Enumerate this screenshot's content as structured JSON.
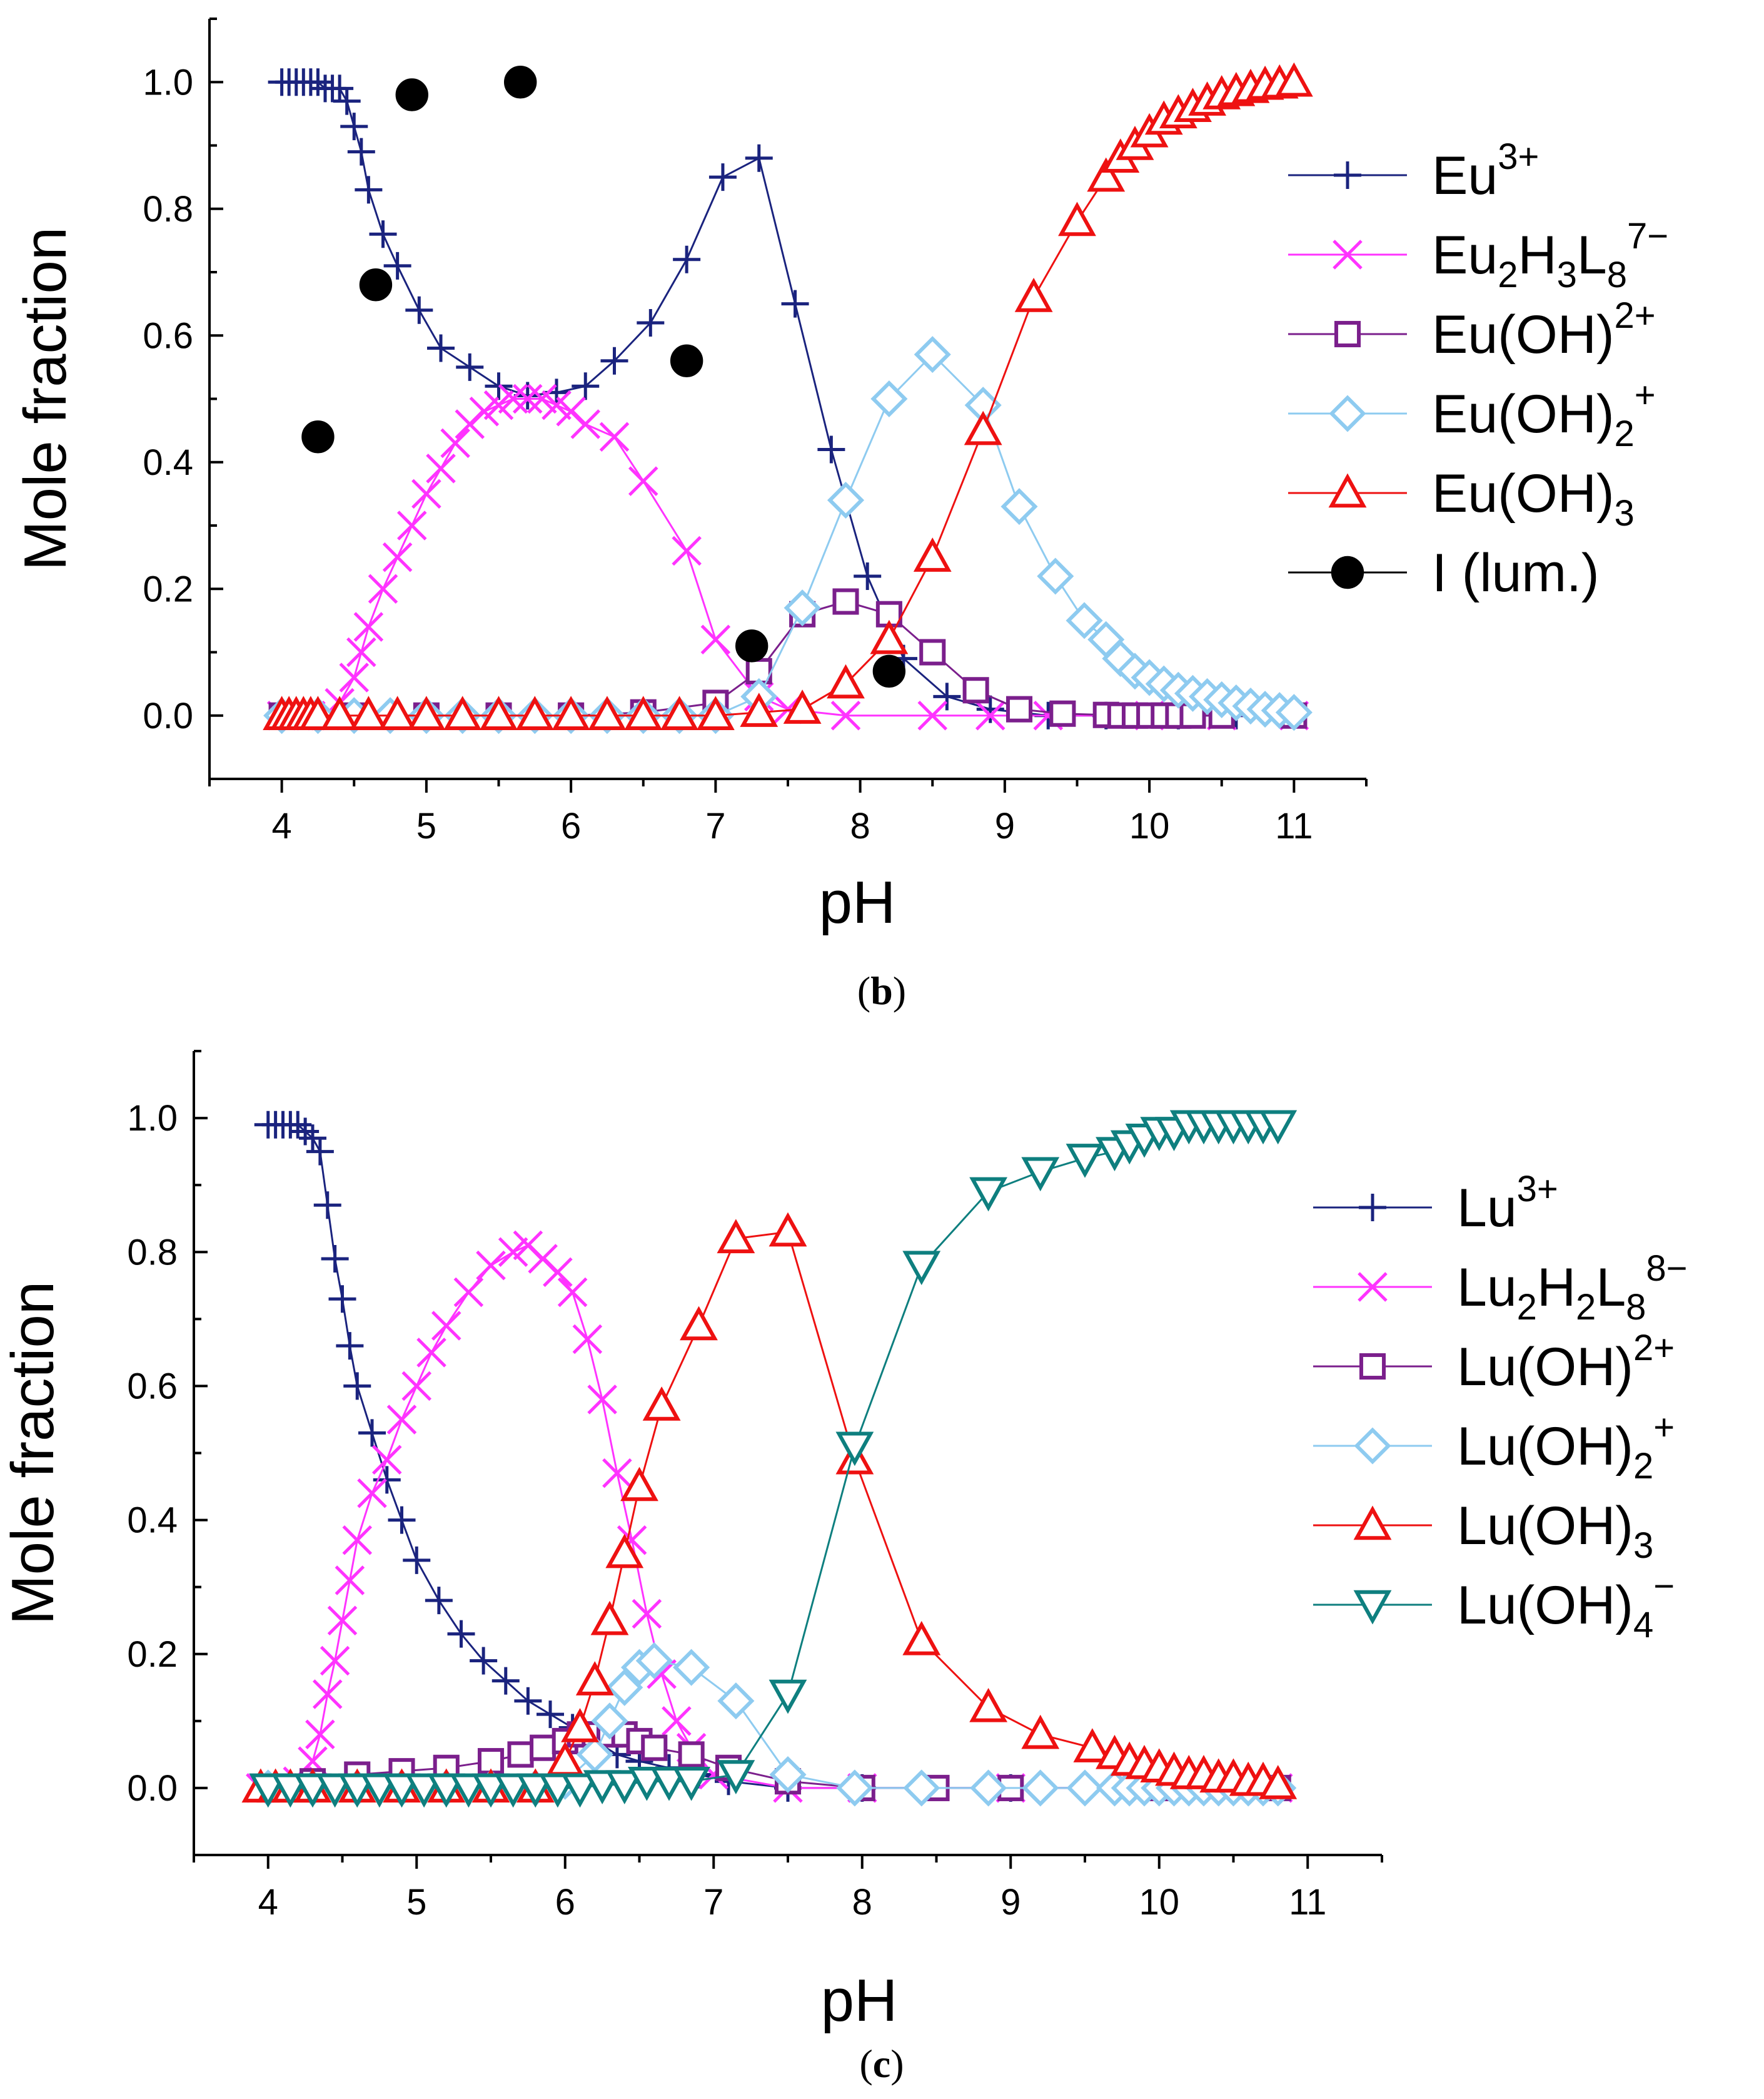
{
  "chart_data": [
    {
      "type": "scatter",
      "caption_open": "(",
      "caption_letter": "b",
      "caption_close": ")",
      "xlabel": "pH",
      "ylabel": "Mole fraction",
      "xlim": [
        3.5,
        11.5
      ],
      "ylim": [
        -0.1,
        1.1
      ],
      "xticks": [
        "4",
        "5",
        "6",
        "7",
        "8",
        "9",
        "10",
        "11"
      ],
      "yticks": [
        "0.0",
        "0.2",
        "0.4",
        "0.6",
        "0.8",
        "1.0"
      ],
      "legend_position": "right",
      "series": [
        {
          "key": "eu3",
          "name": "Eu",
          "sup": "3+",
          "marker": "plus",
          "color": "#1a237e",
          "x": [
            4.0,
            4.05,
            4.1,
            4.15,
            4.2,
            4.25,
            4.3,
            4.35,
            4.4,
            4.45,
            4.5,
            4.55,
            4.6,
            4.7,
            4.8,
            4.95,
            5.1,
            5.3,
            5.5,
            5.7,
            5.9,
            6.1,
            6.3,
            6.55,
            6.8,
            7.05,
            7.3,
            7.55,
            7.8,
            8.05,
            8.3,
            8.6,
            8.9,
            9.3,
            9.7,
            10.2,
            10.6,
            11.0
          ],
          "y": [
            1.0,
            1.0,
            1.0,
            1.0,
            1.0,
            1.0,
            0.99,
            0.99,
            0.99,
            0.97,
            0.93,
            0.89,
            0.83,
            0.76,
            0.71,
            0.64,
            0.58,
            0.55,
            0.52,
            0.505,
            0.51,
            0.52,
            0.56,
            0.62,
            0.72,
            0.85,
            0.88,
            0.65,
            0.42,
            0.22,
            0.09,
            0.03,
            0.01,
            0.0,
            0.0,
            0.0,
            0.0,
            0.0
          ]
        },
        {
          "key": "eu2h3l8",
          "name": "Eu",
          "sub1": "2",
          "mid": "H",
          "sub2": "3",
          "mid2": "L",
          "sub3": "8",
          "sup": "7−",
          "marker": "x",
          "color": "#ff33ff",
          "x": [
            4.0,
            4.1,
            4.2,
            4.3,
            4.4,
            4.5,
            4.55,
            4.6,
            4.7,
            4.8,
            4.9,
            5.0,
            5.1,
            5.2,
            5.3,
            5.4,
            5.5,
            5.6,
            5.7,
            5.8,
            5.9,
            6.0,
            6.1,
            6.3,
            6.5,
            6.8,
            7.0,
            7.3,
            7.5,
            7.9,
            8.5,
            8.9,
            9.3,
            10.0,
            10.5,
            11.0
          ],
          "y": [
            0.0,
            0.0,
            0.0,
            0.0,
            0.02,
            0.06,
            0.1,
            0.14,
            0.2,
            0.25,
            0.3,
            0.35,
            0.39,
            0.43,
            0.46,
            0.48,
            0.49,
            0.5,
            0.5,
            0.5,
            0.49,
            0.48,
            0.46,
            0.44,
            0.37,
            0.26,
            0.12,
            0.03,
            0.01,
            0.0,
            0.0,
            0.0,
            0.0,
            0.0,
            0.0,
            0.0
          ]
        },
        {
          "key": "euoh",
          "name": "Eu(OH)",
          "sup": "2+",
          "marker": "square",
          "color": "#7b1f8c",
          "x": [
            4.0,
            4.5,
            5.0,
            5.5,
            6.0,
            6.5,
            7.0,
            7.3,
            7.6,
            7.9,
            8.2,
            8.5,
            8.8,
            9.1,
            9.4,
            9.7,
            9.8,
            9.9,
            10.0,
            10.1,
            10.2,
            10.3,
            10.5,
            11.0
          ],
          "y": [
            0.0,
            0.0,
            0.0,
            0.0,
            0.0,
            0.005,
            0.02,
            0.07,
            0.16,
            0.18,
            0.16,
            0.1,
            0.04,
            0.01,
            0.003,
            0.001,
            0.0,
            0.0,
            0.0,
            0.0,
            0.0,
            0.0,
            0.0,
            0.0
          ]
        },
        {
          "key": "euoh2",
          "name": "Eu(OH)",
          "sub1": "2",
          "sup": "+",
          "marker": "diamond",
          "color": "#8ecbf0",
          "x": [
            4.0,
            4.25,
            4.5,
            4.75,
            5.0,
            5.25,
            5.5,
            5.75,
            6.0,
            6.25,
            6.5,
            6.75,
            7.0,
            7.3,
            7.6,
            7.9,
            8.2,
            8.5,
            8.85,
            9.1,
            9.35,
            9.55,
            9.7,
            9.8,
            9.9,
            10.0,
            10.1,
            10.2,
            10.3,
            10.4,
            10.5,
            10.6,
            10.7,
            10.8,
            10.9,
            11.0
          ],
          "y": [
            0.0,
            0.0,
            0.0,
            0.0,
            0.0,
            0.0,
            0.0,
            0.0,
            0.0,
            0.0,
            0.0,
            0.0,
            0.0,
            0.03,
            0.17,
            0.34,
            0.5,
            0.57,
            0.49,
            0.33,
            0.22,
            0.15,
            0.12,
            0.09,
            0.07,
            0.06,
            0.05,
            0.04,
            0.035,
            0.03,
            0.025,
            0.02,
            0.015,
            0.01,
            0.008,
            0.005
          ]
        },
        {
          "key": "euoh3",
          "name": "Eu(OH)",
          "sub1": "3",
          "marker": "triangle",
          "color": "#ee1111",
          "x": [
            4.0,
            4.05,
            4.1,
            4.15,
            4.2,
            4.25,
            4.4,
            4.6,
            4.8,
            5.0,
            5.25,
            5.5,
            5.75,
            6.0,
            6.25,
            6.5,
            6.75,
            7.0,
            7.3,
            7.6,
            7.9,
            8.2,
            8.5,
            8.85,
            9.2,
            9.5,
            9.7,
            9.8,
            9.9,
            10.0,
            10.1,
            10.2,
            10.3,
            10.4,
            10.5,
            10.6,
            10.7,
            10.8,
            10.9,
            11.0
          ],
          "y": [
            0.0,
            0.0,
            0.0,
            0.0,
            0.0,
            0.0,
            0.0,
            0.0,
            0.0,
            0.0,
            0.0,
            0.0,
            0.0,
            0.0,
            0.0,
            0.0,
            0.0,
            0.0,
            0.005,
            0.01,
            0.05,
            0.12,
            0.25,
            0.45,
            0.66,
            0.78,
            0.85,
            0.88,
            0.9,
            0.92,
            0.94,
            0.95,
            0.96,
            0.97,
            0.98,
            0.985,
            0.99,
            0.995,
            0.997,
            1.0
          ]
        },
        {
          "key": "ilum",
          "name": "I (lum.)",
          "marker": "circle",
          "color": "#000000",
          "line": false,
          "x": [
            4.25,
            4.65,
            4.9,
            5.65,
            6.8,
            7.25,
            8.2
          ],
          "y": [
            0.44,
            0.68,
            0.98,
            1.0,
            0.56,
            0.11,
            0.07
          ]
        }
      ]
    },
    {
      "type": "scatter",
      "caption_open": "(",
      "caption_letter": "c",
      "caption_close": ")",
      "xlabel": "pH",
      "ylabel": "Mole fraction",
      "xlim": [
        3.5,
        11.5
      ],
      "ylim": [
        -0.1,
        1.1
      ],
      "xticks": [
        "4",
        "5",
        "6",
        "7",
        "8",
        "9",
        "10",
        "11"
      ],
      "yticks": [
        "0.0",
        "0.2",
        "0.4",
        "0.6",
        "0.8",
        "1.0"
      ],
      "legend_position": "right",
      "series": [
        {
          "key": "lu3",
          "name": "Lu",
          "sup": "3+",
          "marker": "plus",
          "color": "#1a237e",
          "x": [
            4.0,
            4.05,
            4.1,
            4.15,
            4.2,
            4.25,
            4.3,
            4.35,
            4.4,
            4.45,
            4.5,
            4.55,
            4.6,
            4.7,
            4.8,
            4.9,
            5.0,
            5.15,
            5.3,
            5.45,
            5.6,
            5.75,
            5.9,
            6.05,
            6.2,
            6.35,
            6.5,
            6.7,
            6.9,
            7.1,
            7.5,
            8.0,
            9.0,
            10.0,
            10.8
          ],
          "y": [
            0.99,
            0.99,
            0.99,
            0.99,
            0.99,
            0.98,
            0.97,
            0.95,
            0.87,
            0.79,
            0.73,
            0.66,
            0.6,
            0.53,
            0.46,
            0.4,
            0.34,
            0.28,
            0.23,
            0.19,
            0.16,
            0.13,
            0.11,
            0.09,
            0.07,
            0.05,
            0.04,
            0.03,
            0.02,
            0.01,
            0.0,
            0.0,
            0.0,
            0.0,
            0.0
          ]
        },
        {
          "key": "lu2h2l8",
          "name": "Lu",
          "sub1": "2",
          "mid": "H",
          "sub2": "2",
          "mid2": "L",
          "sub3": "8",
          "sup": "8−",
          "marker": "x",
          "color": "#ff33ff",
          "x": [
            3.95,
            4.1,
            4.2,
            4.3,
            4.35,
            4.4,
            4.45,
            4.5,
            4.55,
            4.6,
            4.7,
            4.8,
            4.9,
            5.0,
            5.1,
            5.2,
            5.35,
            5.5,
            5.65,
            5.75,
            5.85,
            5.95,
            6.05,
            6.15,
            6.25,
            6.35,
            6.45,
            6.55,
            6.65,
            6.75,
            6.85,
            7.0,
            7.5,
            8.0,
            9.0,
            10.0,
            10.8
          ],
          "y": [
            0.0,
            0.0,
            0.01,
            0.04,
            0.08,
            0.14,
            0.19,
            0.25,
            0.31,
            0.37,
            0.44,
            0.49,
            0.55,
            0.6,
            0.65,
            0.69,
            0.74,
            0.78,
            0.8,
            0.81,
            0.79,
            0.77,
            0.74,
            0.67,
            0.58,
            0.47,
            0.37,
            0.26,
            0.17,
            0.1,
            0.06,
            0.02,
            0.0,
            0.0,
            0.0,
            0.0,
            0.0
          ]
        },
        {
          "key": "luoh",
          "name": "Lu(OH)",
          "sup": "2+",
          "marker": "square",
          "color": "#7b1f8c",
          "x": [
            4.0,
            4.3,
            4.6,
            4.9,
            5.2,
            5.5,
            5.7,
            5.85,
            6.0,
            6.1,
            6.2,
            6.3,
            6.4,
            6.5,
            6.6,
            6.85,
            7.1,
            7.5,
            8.0,
            8.5,
            9.0,
            10.0,
            10.8
          ],
          "y": [
            0.0,
            0.01,
            0.02,
            0.025,
            0.03,
            0.04,
            0.05,
            0.06,
            0.07,
            0.08,
            0.08,
            0.08,
            0.08,
            0.07,
            0.06,
            0.05,
            0.03,
            0.01,
            0.0,
            0.0,
            0.0,
            0.0,
            0.0
          ]
        },
        {
          "key": "luoh2",
          "name": "Lu(OH)",
          "sub1": "2",
          "sup": "+",
          "marker": "diamond",
          "color": "#8ecbf0",
          "x": [
            4.0,
            4.3,
            4.6,
            4.9,
            5.2,
            5.5,
            5.8,
            6.0,
            6.2,
            6.3,
            6.4,
            6.5,
            6.6,
            6.85,
            7.15,
            7.5,
            7.95,
            8.4,
            8.85,
            9.2,
            9.5,
            9.7,
            9.8,
            9.9,
            10.0,
            10.1,
            10.2,
            10.3,
            10.4,
            10.5,
            10.6,
            10.7,
            10.8
          ],
          "y": [
            0.0,
            0.0,
            0.0,
            0.0,
            0.0,
            0.0,
            0.0,
            0.01,
            0.05,
            0.1,
            0.15,
            0.18,
            0.19,
            0.18,
            0.13,
            0.02,
            0.0,
            0.0,
            0.0,
            0.0,
            0.0,
            0.0,
            0.0,
            0.0,
            0.0,
            0.0,
            0.0,
            0.0,
            0.0,
            0.0,
            0.0,
            0.0,
            0.0
          ]
        },
        {
          "key": "luoh3",
          "name": "Lu(OH)",
          "sub1": "3",
          "marker": "triangle",
          "color": "#ee1111",
          "x": [
            3.95,
            4.05,
            4.15,
            4.3,
            4.6,
            4.9,
            5.2,
            5.5,
            5.8,
            6.0,
            6.1,
            6.2,
            6.3,
            6.4,
            6.5,
            6.65,
            6.9,
            7.15,
            7.5,
            7.95,
            8.4,
            8.85,
            9.2,
            9.55,
            9.7,
            9.8,
            9.9,
            10.0,
            10.1,
            10.2,
            10.3,
            10.4,
            10.5,
            10.6,
            10.7,
            10.8
          ],
          "y": [
            0.0,
            0.0,
            0.0,
            0.0,
            0.0,
            0.0,
            0.0,
            0.0,
            0.0,
            0.04,
            0.09,
            0.16,
            0.25,
            0.35,
            0.45,
            0.57,
            0.69,
            0.82,
            0.83,
            0.49,
            0.22,
            0.12,
            0.08,
            0.06,
            0.05,
            0.04,
            0.035,
            0.03,
            0.025,
            0.02,
            0.02,
            0.015,
            0.015,
            0.01,
            0.01,
            0.005
          ]
        },
        {
          "key": "luoh4",
          "name": "Lu(OH)",
          "sub1": "4",
          "sup": "−",
          "marker": "triangledown",
          "color": "#0e7f7f",
          "x": [
            4.0,
            4.15,
            4.3,
            4.45,
            4.6,
            4.75,
            4.9,
            5.05,
            5.2,
            5.35,
            5.5,
            5.65,
            5.8,
            5.95,
            6.1,
            6.25,
            6.4,
            6.55,
            6.7,
            6.85,
            7.15,
            7.5,
            7.95,
            8.4,
            8.85,
            9.2,
            9.5,
            9.7,
            9.8,
            9.9,
            10.0,
            10.1,
            10.2,
            10.3,
            10.4,
            10.5,
            10.6,
            10.7,
            10.8
          ],
          "y": [
            0.0,
            0.0,
            0.0,
            0.0,
            0.0,
            0.0,
            0.0,
            0.0,
            0.0,
            0.0,
            0.0,
            0.0,
            0.0,
            0.0,
            0.0,
            0.005,
            0.005,
            0.01,
            0.01,
            0.01,
            0.02,
            0.14,
            0.51,
            0.78,
            0.89,
            0.92,
            0.94,
            0.95,
            0.96,
            0.97,
            0.98,
            0.98,
            0.99,
            0.99,
            0.99,
            0.99,
            0.99,
            0.99,
            0.99
          ]
        }
      ]
    }
  ]
}
